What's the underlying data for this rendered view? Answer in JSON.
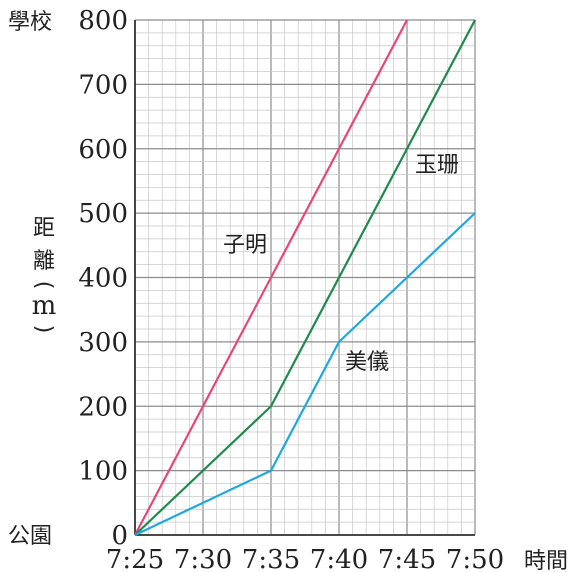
{
  "chart_data": {
    "type": "line",
    "x_ticks": [
      "7:25",
      "7:30",
      "7:35",
      "7:40",
      "7:45",
      "7:50"
    ],
    "x_tick_minutes": [
      0,
      5,
      10,
      15,
      20,
      25
    ],
    "y_ticks": [
      "0",
      "100",
      "200",
      "300",
      "400",
      "500",
      "600",
      "700",
      "800"
    ],
    "xlim": [
      "7:25",
      "7:50"
    ],
    "ylim": [
      0,
      800
    ],
    "xlabel": "時間",
    "ylabel": [
      "距",
      "離",
      "(",
      "m",
      ")"
    ],
    "y_top_label": "學校",
    "y_bottom_label": "公園",
    "grid": true,
    "series": [
      {
        "name": "子明",
        "color": "#e8457f",
        "x": [
          "7:25",
          "7:45"
        ],
        "y": [
          0,
          800
        ]
      },
      {
        "name": "玉珊",
        "color": "#1f8a4c",
        "x": [
          "7:25",
          "7:35",
          "7:50"
        ],
        "y": [
          0,
          200,
          800
        ]
      },
      {
        "name": "美儀",
        "color": "#1fa8e0",
        "x": [
          "7:25",
          "7:35",
          "7:40",
          "7:50"
        ],
        "y": [
          0,
          100,
          300,
          500
        ]
      }
    ]
  }
}
